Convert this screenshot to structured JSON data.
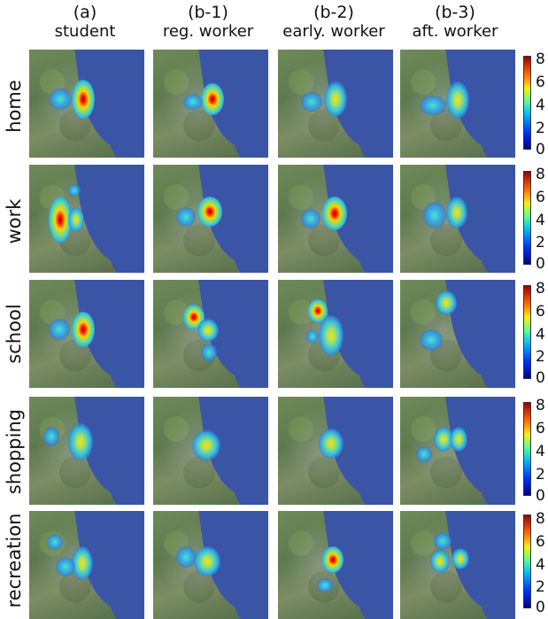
{
  "columns": [
    {
      "tag": "(a)",
      "label": "student"
    },
    {
      "tag": "(b-1)",
      "label": "reg. worker"
    },
    {
      "tag": "(b-2)",
      "label": "early. worker"
    },
    {
      "tag": "(b-3)",
      "label": "aft. worker"
    }
  ],
  "rows": [
    "home",
    "work",
    "school",
    "shopping",
    "recreation"
  ],
  "colorbar_ticks": [
    "8",
    "6",
    "4",
    "2",
    "0"
  ],
  "colors": {
    "lake": "#3b55a6",
    "land": "#6f8a58",
    "hot_max": "#b00000",
    "cold_min": "#00008f"
  }
}
